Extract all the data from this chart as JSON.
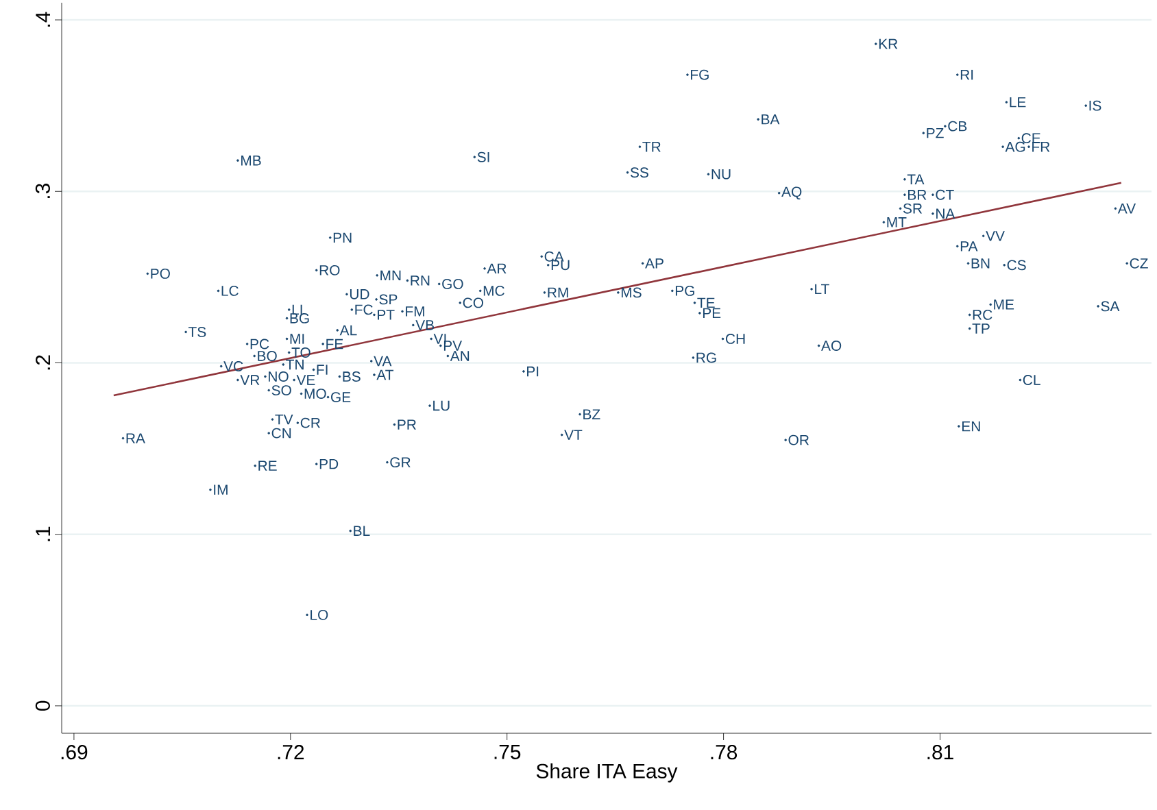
{
  "chart_data": {
    "type": "scatter",
    "xlabel": "Share ITA Easy",
    "xlim": [
      0.6883,
      0.8393
    ],
    "ylim": [
      -0.016,
      0.41
    ],
    "xticks": [
      {
        "value": 0.69,
        "label": ".69"
      },
      {
        "value": 0.72,
        "label": ".72"
      },
      {
        "value": 0.75,
        "label": ".75"
      },
      {
        "value": 0.78,
        "label": ".78"
      },
      {
        "value": 0.81,
        "label": ".81"
      }
    ],
    "yticks": [
      {
        "value": 0,
        "label": "0"
      },
      {
        "value": 0.1,
        "label": ".1"
      },
      {
        "value": 0.2,
        "label": ".2"
      },
      {
        "value": 0.3,
        "label": ".3"
      },
      {
        "value": 0.4,
        "label": ".4"
      }
    ],
    "grid": "y",
    "series": [
      {
        "marker": "circle",
        "color": "#1a476f",
        "x": [
          0.8011,
          0.775,
          0.8124,
          0.8192,
          0.8302,
          0.7848,
          0.8077,
          0.8107,
          0.8209,
          0.8187,
          0.8223,
          0.7684,
          0.7127,
          0.7455,
          0.7667,
          0.7779,
          0.8051,
          0.7877,
          0.8051,
          0.809,
          0.8045,
          0.809,
          0.8343,
          0.8022,
          0.7255,
          0.816,
          0.8124,
          0.7548,
          0.7557,
          0.8139,
          0.8189,
          0.8359,
          0.7469,
          0.7236,
          0.7688,
          0.7002,
          0.7406,
          0.732,
          0.7362,
          0.71,
          0.7463,
          0.7729,
          0.7922,
          0.7552,
          0.7654,
          0.7278,
          0.7319,
          0.7435,
          0.776,
          0.7767,
          0.7285,
          0.7198,
          0.8319,
          0.817,
          0.7316,
          0.7355,
          0.737,
          0.8141,
          0.7195,
          0.8141,
          0.7055,
          0.7799,
          0.7195,
          0.7265,
          0.7245,
          0.7395,
          0.7408,
          0.7932,
          0.7418,
          0.7198,
          0.7758,
          0.714,
          0.715,
          0.7104,
          0.719,
          0.7232,
          0.7312,
          0.7165,
          0.7523,
          0.7127,
          0.7205,
          0.717,
          0.7316,
          0.7268,
          0.7215,
          0.7252,
          0.7393,
          0.7175,
          0.721,
          0.7344,
          0.717,
          0.7601,
          0.7576,
          0.7886,
          0.8126,
          0.8211,
          0.6968,
          0.7151,
          0.7236,
          0.7334,
          0.7089,
          0.7283,
          0.7223
        ],
        "values": [
          0.386,
          0.368,
          0.368,
          0.352,
          0.35,
          0.342,
          0.334,
          0.338,
          0.331,
          0.326,
          0.326,
          0.326,
          0.318,
          0.32,
          0.311,
          0.31,
          0.307,
          0.299,
          0.298,
          0.298,
          0.29,
          0.287,
          0.29,
          0.282,
          0.273,
          0.274,
          0.268,
          0.262,
          0.257,
          0.258,
          0.257,
          0.258,
          0.255,
          0.254,
          0.258,
          0.252,
          0.246,
          0.251,
          0.248,
          0.242,
          0.242,
          0.242,
          0.243,
          0.241,
          0.241,
          0.24,
          0.237,
          0.235,
          0.235,
          0.229,
          0.231,
          0.231,
          0.233,
          0.234,
          0.228,
          0.23,
          0.222,
          0.228,
          0.226,
          0.22,
          0.218,
          0.214,
          0.214,
          0.219,
          0.211,
          0.214,
          0.21,
          0.21,
          0.204,
          0.206,
          0.203,
          0.211,
          0.204,
          0.198,
          0.199,
          0.196,
          0.201,
          0.192,
          0.195,
          0.19,
          0.19,
          0.184,
          0.193,
          0.192,
          0.182,
          0.18,
          0.175,
          0.167,
          0.165,
          0.164,
          0.159,
          0.17,
          0.158,
          0.155,
          0.163,
          0.19,
          0.156,
          0.14,
          0.141,
          0.142,
          0.126,
          0.102,
          0.053
        ],
        "value_labels": [
          "KR",
          "FG",
          "RI",
          "LE",
          "IS",
          "BA",
          "PZ",
          "CB",
          "CE",
          "AG",
          "FR",
          "TR",
          "MB",
          "SI",
          "SS",
          "NU",
          "TA",
          "AQ",
          "BR",
          "CT",
          "SR",
          "NA",
          "AV",
          "MT",
          "PN",
          "VV",
          "PA",
          "CA",
          "PU",
          "BN",
          "CS",
          "CZ",
          "AR",
          "RO",
          "AP",
          "PO",
          "GO",
          "MN",
          "RN",
          "LC",
          "MC",
          "PG",
          "LT",
          "RM",
          "MS",
          "UD",
          "SP",
          "CO",
          "TE",
          "PE",
          "FC",
          "LI",
          "SA",
          "ME",
          "PT",
          "FM",
          "VB",
          "RC",
          "BG",
          "TP",
          "TS",
          "CH",
          "MI",
          "AL",
          "FE",
          "VI",
          "PV",
          "AO",
          "AN",
          "TO",
          "RG",
          "PC",
          "BO",
          "VC",
          "TN",
          "FI",
          "VA",
          "NO",
          "PI",
          "VR",
          "VE",
          "SO",
          "AT",
          "BS",
          "MO",
          "GE",
          "LU",
          "TV",
          "CR",
          "PR",
          "CN",
          "BZ",
          "VT",
          "OR",
          "EN",
          "CL",
          "RA",
          "RE",
          "PD",
          "GR",
          "IM",
          "BL",
          "LO"
        ]
      },
      {
        "type": "line",
        "marker": "none",
        "color": "#90353b",
        "x": [
          0.6955,
          0.8351
        ],
        "values": [
          0.181,
          0.305
        ]
      }
    ]
  }
}
